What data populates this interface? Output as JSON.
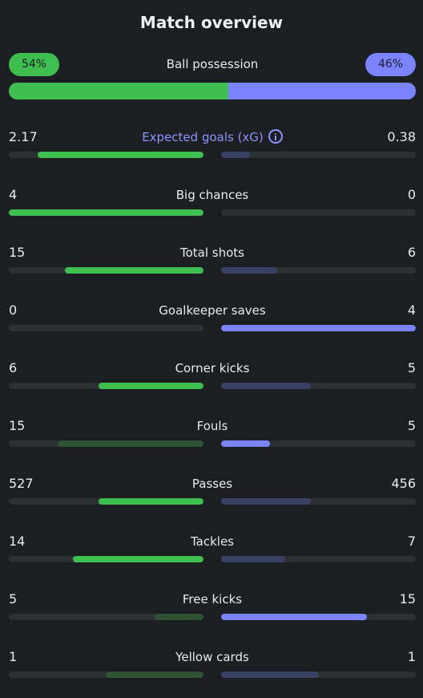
{
  "title": "Match overview",
  "possession": {
    "label": "Ball possession",
    "home": "54%",
    "away": "46%",
    "home_value": 54,
    "away_value": 46
  },
  "colors": {
    "home": "#3fbf4f",
    "away": "#7b83ff",
    "home_muted": "#2e5233",
    "away_muted": "#3b4164",
    "track": "#2b3033",
    "background": "#1b1f22"
  },
  "stats": [
    {
      "label": "Expected goals (xG)",
      "home": "2.17",
      "away": "0.38",
      "home_fill": 0.85,
      "away_fill": 0.15,
      "winner": "home",
      "info_icon": "info-icon"
    },
    {
      "label": "Big chances",
      "home": "4",
      "away": "0",
      "home_fill": 1.0,
      "away_fill": 0.0,
      "winner": "home"
    },
    {
      "label": "Total shots",
      "home": "15",
      "away": "6",
      "home_fill": 0.71,
      "away_fill": 0.29,
      "winner": "home"
    },
    {
      "label": "Goalkeeper saves",
      "home": "0",
      "away": "4",
      "home_fill": 0.0,
      "away_fill": 1.0,
      "winner": "away"
    },
    {
      "label": "Corner kicks",
      "home": "6",
      "away": "5",
      "home_fill": 0.54,
      "away_fill": 0.46,
      "winner": "home"
    },
    {
      "label": "Fouls",
      "home": "15",
      "away": "5",
      "home_fill": 0.75,
      "away_fill": 0.25,
      "winner": "away"
    },
    {
      "label": "Passes",
      "home": "527",
      "away": "456",
      "home_fill": 0.54,
      "away_fill": 0.46,
      "winner": "home"
    },
    {
      "label": "Tackles",
      "home": "14",
      "away": "7",
      "home_fill": 0.67,
      "away_fill": 0.33,
      "winner": "home"
    },
    {
      "label": "Free kicks",
      "home": "5",
      "away": "15",
      "home_fill": 0.25,
      "away_fill": 0.75,
      "winner": "away"
    },
    {
      "label": "Yellow cards",
      "home": "1",
      "away": "1",
      "home_fill": 0.5,
      "away_fill": 0.5,
      "winner": "none"
    }
  ]
}
